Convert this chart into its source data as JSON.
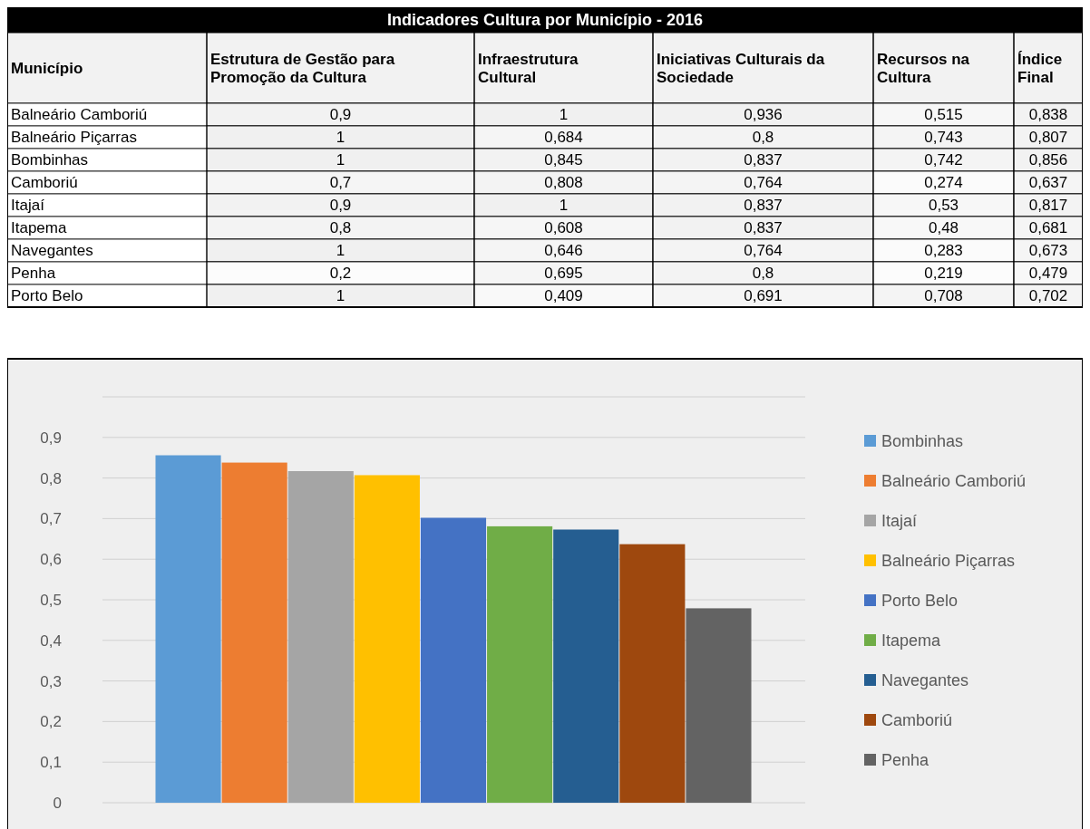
{
  "chart_data": [
    {
      "type": "heatmap",
      "title": "Indicadores Cultura por Município - 2016",
      "ylabel": "Município",
      "categories": [
        "Estrutura de Gestão para Promoção da Cultura",
        "Infraestrutura Cultural",
        "Iniciativas Culturais da Sociedade",
        "Recursos na Cultura",
        "Índice Final"
      ],
      "y_categories": [
        "Balneário Camboriú",
        "Balneário Piçarras",
        "Bombinhas",
        "Camboriú",
        "Itajaí",
        "Itapema",
        "Navegantes",
        "Penha",
        "Porto Belo"
      ],
      "cells": [
        [
          0.9,
          1,
          0.936,
          0.515,
          0.838
        ],
        [
          1,
          0.684,
          0.8,
          0.743,
          0.807
        ],
        [
          1,
          0.845,
          0.837,
          0.742,
          0.856
        ],
        [
          0.7,
          0.808,
          0.764,
          0.274,
          0.637
        ],
        [
          0.9,
          1,
          0.837,
          0.53,
          0.817
        ],
        [
          0.8,
          0.608,
          0.837,
          0.48,
          0.681
        ],
        [
          1,
          0.646,
          0.764,
          0.283,
          0.673
        ],
        [
          0.2,
          0.695,
          0.8,
          0.219,
          0.479
        ],
        [
          1,
          0.409,
          0.691,
          0.708,
          0.702
        ]
      ],
      "cell_labels": [
        [
          "0,9",
          "1",
          "0,936",
          "0,515",
          "0,838"
        ],
        [
          "1",
          "0,684",
          "0,8",
          "0,743",
          "0,807"
        ],
        [
          "1",
          "0,845",
          "0,837",
          "0,742",
          "0,856"
        ],
        [
          "0,7",
          "0,808",
          "0,764",
          "0,274",
          "0,637"
        ],
        [
          "0,9",
          "1",
          "0,837",
          "0,53",
          "0,817"
        ],
        [
          "0,8",
          "0,608",
          "0,837",
          "0,48",
          "0,681"
        ],
        [
          "1",
          "0,646",
          "0,764",
          "0,283",
          "0,673"
        ],
        [
          "0,2",
          "0,695",
          "0,8",
          "0,219",
          "0,479"
        ],
        [
          "1",
          "0,409",
          "0,691",
          "0,708",
          "0,702"
        ]
      ]
    },
    {
      "type": "bar",
      "categories": [
        null
      ],
      "ylim": [
        0,
        1
      ],
      "yticks": [
        {
          "value": 0,
          "label": "0"
        },
        {
          "value": 0.1,
          "label": "0,1"
        },
        {
          "value": 0.2,
          "label": "0,2"
        },
        {
          "value": 0.3,
          "label": "0,3"
        },
        {
          "value": 0.4,
          "label": "0,4"
        },
        {
          "value": 0.5,
          "label": "0,5"
        },
        {
          "value": 0.6,
          "label": "0,6"
        },
        {
          "value": 0.7,
          "label": "0,7"
        },
        {
          "value": 0.8,
          "label": "0,8"
        },
        {
          "value": 0.9,
          "label": "0,9"
        },
        {
          "value": 1,
          "label": null
        }
      ],
      "grid": "y",
      "legend": "right",
      "series": [
        {
          "name": "Bombinhas",
          "color": "#5b9bd5",
          "values": [
            0.856
          ]
        },
        {
          "name": "Balneário Camboriú",
          "color": "#ed7d31",
          "values": [
            0.838
          ]
        },
        {
          "name": "Itajaí",
          "color": "#a5a5a5",
          "values": [
            0.817
          ]
        },
        {
          "name": "Balneário Piçarras",
          "color": "#ffc000",
          "values": [
            0.807
          ]
        },
        {
          "name": "Porto Belo",
          "color": "#4472c4",
          "values": [
            0.702
          ]
        },
        {
          "name": "Itapema",
          "color": "#70ad47",
          "values": [
            0.681
          ]
        },
        {
          "name": "Navegantes",
          "color": "#255e91",
          "values": [
            0.673
          ]
        },
        {
          "name": "Camboriú",
          "color": "#9e480e",
          "values": [
            0.637
          ]
        },
        {
          "name": "Penha",
          "color": "#636363",
          "values": [
            0.479
          ]
        }
      ]
    }
  ]
}
